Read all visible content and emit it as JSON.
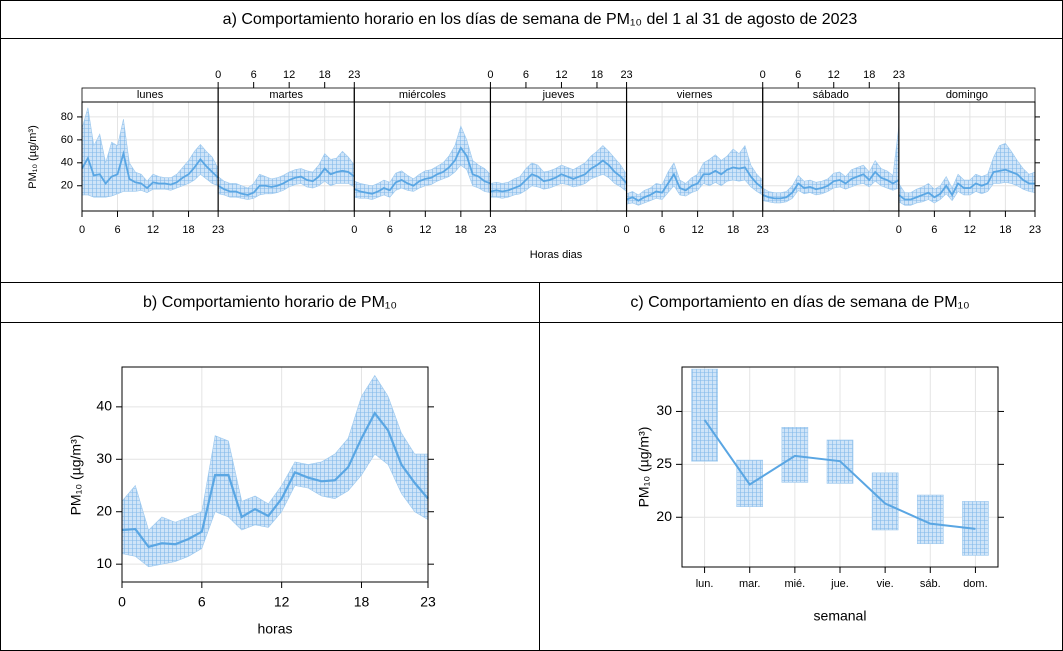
{
  "chart_data": [
    {
      "type": "line-band-facets",
      "title": "a) Comportamiento horario en los días de semana de PM₁₀ del 1 al 31 de agosto de 2023",
      "xlabel": "Horas dias",
      "ylabel": "PM₁₀ (µg/m³)",
      "color": "#5aa6e3",
      "grid": true,
      "x": [
        0,
        1,
        2,
        3,
        4,
        5,
        6,
        7,
        8,
        9,
        10,
        11,
        12,
        13,
        14,
        15,
        16,
        17,
        18,
        19,
        20,
        21,
        22,
        23
      ],
      "xlim": [
        0,
        23
      ],
      "xticks": [
        0,
        6,
        12,
        18,
        23
      ],
      "ylim": [
        -2,
        93
      ],
      "yticks": [
        20,
        40,
        60,
        80
      ],
      "series": [
        {
          "name": "lunes",
          "values": [
            35,
            44,
            29,
            30,
            22,
            28,
            30,
            48,
            26,
            23,
            22,
            18,
            23,
            22,
            22,
            21,
            23,
            27,
            30,
            36,
            43,
            37,
            32,
            27
          ],
          "lower": [
            12,
            12,
            10,
            10,
            10,
            11,
            13,
            15,
            15,
            15,
            16,
            14,
            17,
            17,
            17,
            16,
            18,
            20,
            22,
            25,
            30,
            26,
            22,
            20
          ],
          "upper": [
            70,
            88,
            55,
            65,
            40,
            58,
            55,
            78,
            40,
            32,
            30,
            24,
            30,
            28,
            27,
            27,
            30,
            36,
            42,
            50,
            56,
            50,
            45,
            35
          ]
        },
        {
          "name": "martes",
          "values": [
            20,
            17,
            15,
            15,
            13,
            12,
            14,
            20,
            20,
            19,
            20,
            22,
            25,
            27,
            28,
            25,
            24,
            28,
            35,
            30,
            32,
            33,
            32,
            28
          ],
          "lower": [
            13,
            12,
            10,
            10,
            9,
            8,
            9,
            12,
            13,
            13,
            14,
            16,
            19,
            21,
            22,
            19,
            18,
            20,
            24,
            20,
            22,
            22,
            22,
            19
          ],
          "upper": [
            28,
            24,
            22,
            22,
            20,
            18,
            22,
            30,
            28,
            26,
            27,
            29,
            32,
            34,
            35,
            33,
            32,
            38,
            48,
            43,
            44,
            50,
            45,
            38
          ]
        },
        {
          "name": "miércoles",
          "values": [
            17,
            15,
            14,
            13,
            15,
            18,
            16,
            23,
            25,
            22,
            20,
            24,
            26,
            27,
            30,
            32,
            36,
            42,
            53,
            46,
            30,
            28,
            24,
            22
          ],
          "lower": [
            10,
            9,
            9,
            8,
            10,
            12,
            10,
            16,
            18,
            16,
            15,
            18,
            20,
            21,
            24,
            26,
            28,
            32,
            38,
            34,
            20,
            18,
            15,
            14
          ],
          "upper": [
            24,
            22,
            21,
            20,
            22,
            25,
            23,
            31,
            33,
            29,
            26,
            30,
            33,
            34,
            37,
            40,
            46,
            55,
            72,
            60,
            42,
            38,
            35,
            30
          ]
        },
        {
          "name": "jueves",
          "values": [
            15,
            16,
            15,
            16,
            18,
            20,
            25,
            30,
            28,
            24,
            25,
            27,
            30,
            28,
            26,
            28,
            30,
            35,
            38,
            42,
            38,
            32,
            28,
            22
          ],
          "lower": [
            10,
            10,
            9,
            10,
            12,
            13,
            16,
            20,
            19,
            17,
            18,
            20,
            22,
            21,
            19,
            20,
            22,
            26,
            28,
            30,
            27,
            22,
            19,
            15
          ],
          "upper": [
            22,
            23,
            22,
            23,
            26,
            28,
            35,
            40,
            38,
            32,
            33,
            35,
            38,
            36,
            34,
            37,
            40,
            46,
            50,
            55,
            50,
            44,
            38,
            30
          ]
        },
        {
          "name": "viernes",
          "values": [
            8,
            10,
            7,
            10,
            12,
            15,
            14,
            22,
            30,
            18,
            16,
            20,
            22,
            30,
            30,
            33,
            30,
            34,
            36,
            35,
            36,
            28,
            22,
            18
          ],
          "lower": [
            4,
            5,
            3,
            5,
            7,
            9,
            8,
            14,
            20,
            12,
            11,
            14,
            16,
            22,
            20,
            23,
            20,
            24,
            25,
            24,
            25,
            19,
            15,
            12
          ],
          "upper": [
            13,
            15,
            12,
            16,
            18,
            22,
            21,
            32,
            40,
            25,
            22,
            27,
            30,
            40,
            43,
            47,
            42,
            46,
            52,
            48,
            55,
            38,
            30,
            25
          ]
        },
        {
          "name": "sábado",
          "values": [
            12,
            10,
            9,
            9,
            10,
            14,
            22,
            18,
            19,
            17,
            18,
            20,
            24,
            25,
            22,
            26,
            28,
            30,
            25,
            32,
            27,
            25,
            22,
            25
          ],
          "lower": [
            7,
            6,
            5,
            5,
            6,
            9,
            16,
            13,
            14,
            12,
            13,
            15,
            18,
            19,
            17,
            19,
            21,
            22,
            19,
            24,
            20,
            18,
            16,
            18
          ],
          "upper": [
            18,
            15,
            14,
            14,
            15,
            20,
            29,
            24,
            25,
            23,
            24,
            26,
            31,
            32,
            28,
            34,
            36,
            38,
            32,
            42,
            35,
            33,
            29,
            72
          ]
        },
        {
          "name": "domingo",
          "values": [
            12,
            8,
            8,
            10,
            12,
            14,
            10,
            13,
            20,
            12,
            22,
            18,
            18,
            22,
            20,
            22,
            32,
            33,
            34,
            32,
            30,
            25,
            22,
            22
          ],
          "lower": [
            6,
            3,
            3,
            5,
            6,
            8,
            5,
            8,
            13,
            7,
            15,
            12,
            12,
            15,
            13,
            15,
            22,
            22,
            23,
            22,
            20,
            17,
            15,
            14
          ],
          "upper": [
            22,
            14,
            14,
            17,
            19,
            22,
            17,
            20,
            28,
            18,
            30,
            25,
            25,
            30,
            28,
            30,
            45,
            55,
            57,
            50,
            42,
            35,
            30,
            32
          ]
        }
      ]
    },
    {
      "type": "line-band",
      "title": "b) Comportamiento horario de PM₁₀",
      "xlabel": "horas",
      "ylabel": "PM₁₀ (µg/m³)",
      "color": "#5aa6e3",
      "grid": true,
      "x": [
        0,
        1,
        2,
        3,
        4,
        5,
        6,
        7,
        8,
        9,
        10,
        11,
        12,
        13,
        14,
        15,
        16,
        17,
        18,
        19,
        20,
        21,
        22,
        23
      ],
      "xlim": [
        0,
        23
      ],
      "xticks": [
        0,
        6,
        12,
        18,
        23
      ],
      "ylim": [
        6.6,
        47.6
      ],
      "yticks": [
        10,
        20,
        30,
        40
      ],
      "values": [
        16.5,
        16.7,
        13.3,
        14,
        13.8,
        14.8,
        16.2,
        27,
        27,
        19,
        20.5,
        19.2,
        22.5,
        27.5,
        26.5,
        25.8,
        26,
        28.5,
        34,
        38.8,
        35.5,
        29,
        25.5,
        22.5
      ],
      "lower": [
        12,
        11.5,
        9.5,
        10,
        10.5,
        11.5,
        13,
        20,
        19,
        16.5,
        17.5,
        17,
        20,
        25,
        24.5,
        23,
        22.5,
        24,
        27,
        31,
        29,
        23.5,
        20,
        18.5
      ],
      "upper": [
        22,
        25,
        16.5,
        19,
        18,
        19,
        20,
        34.5,
        33.5,
        22,
        23,
        21.5,
        25,
        29.5,
        29,
        29.5,
        31,
        34,
        42,
        46,
        42,
        35,
        31,
        31
      ]
    },
    {
      "type": "box-line",
      "title": "c) Comportamiento en días de semana de PM₁₀",
      "xlabel": "semanal",
      "ylabel": "PM₁₀ (µg/m³)",
      "color": "#5aa6e3",
      "grid": true,
      "categories": [
        "lun.",
        "mar.",
        "mié.",
        "jue.",
        "vie.",
        "sáb.",
        "dom."
      ],
      "ylim": [
        15.3,
        34.2
      ],
      "yticks": [
        20,
        25,
        30
      ],
      "values": [
        29.2,
        23.1,
        25.8,
        25.3,
        21.3,
        19.4,
        18.9
      ],
      "lower": [
        25.3,
        21,
        23.3,
        23.2,
        18.8,
        17.5,
        16.4
      ],
      "upper": [
        34,
        25.4,
        28.5,
        27.3,
        24.2,
        22.1,
        21.5
      ]
    }
  ]
}
